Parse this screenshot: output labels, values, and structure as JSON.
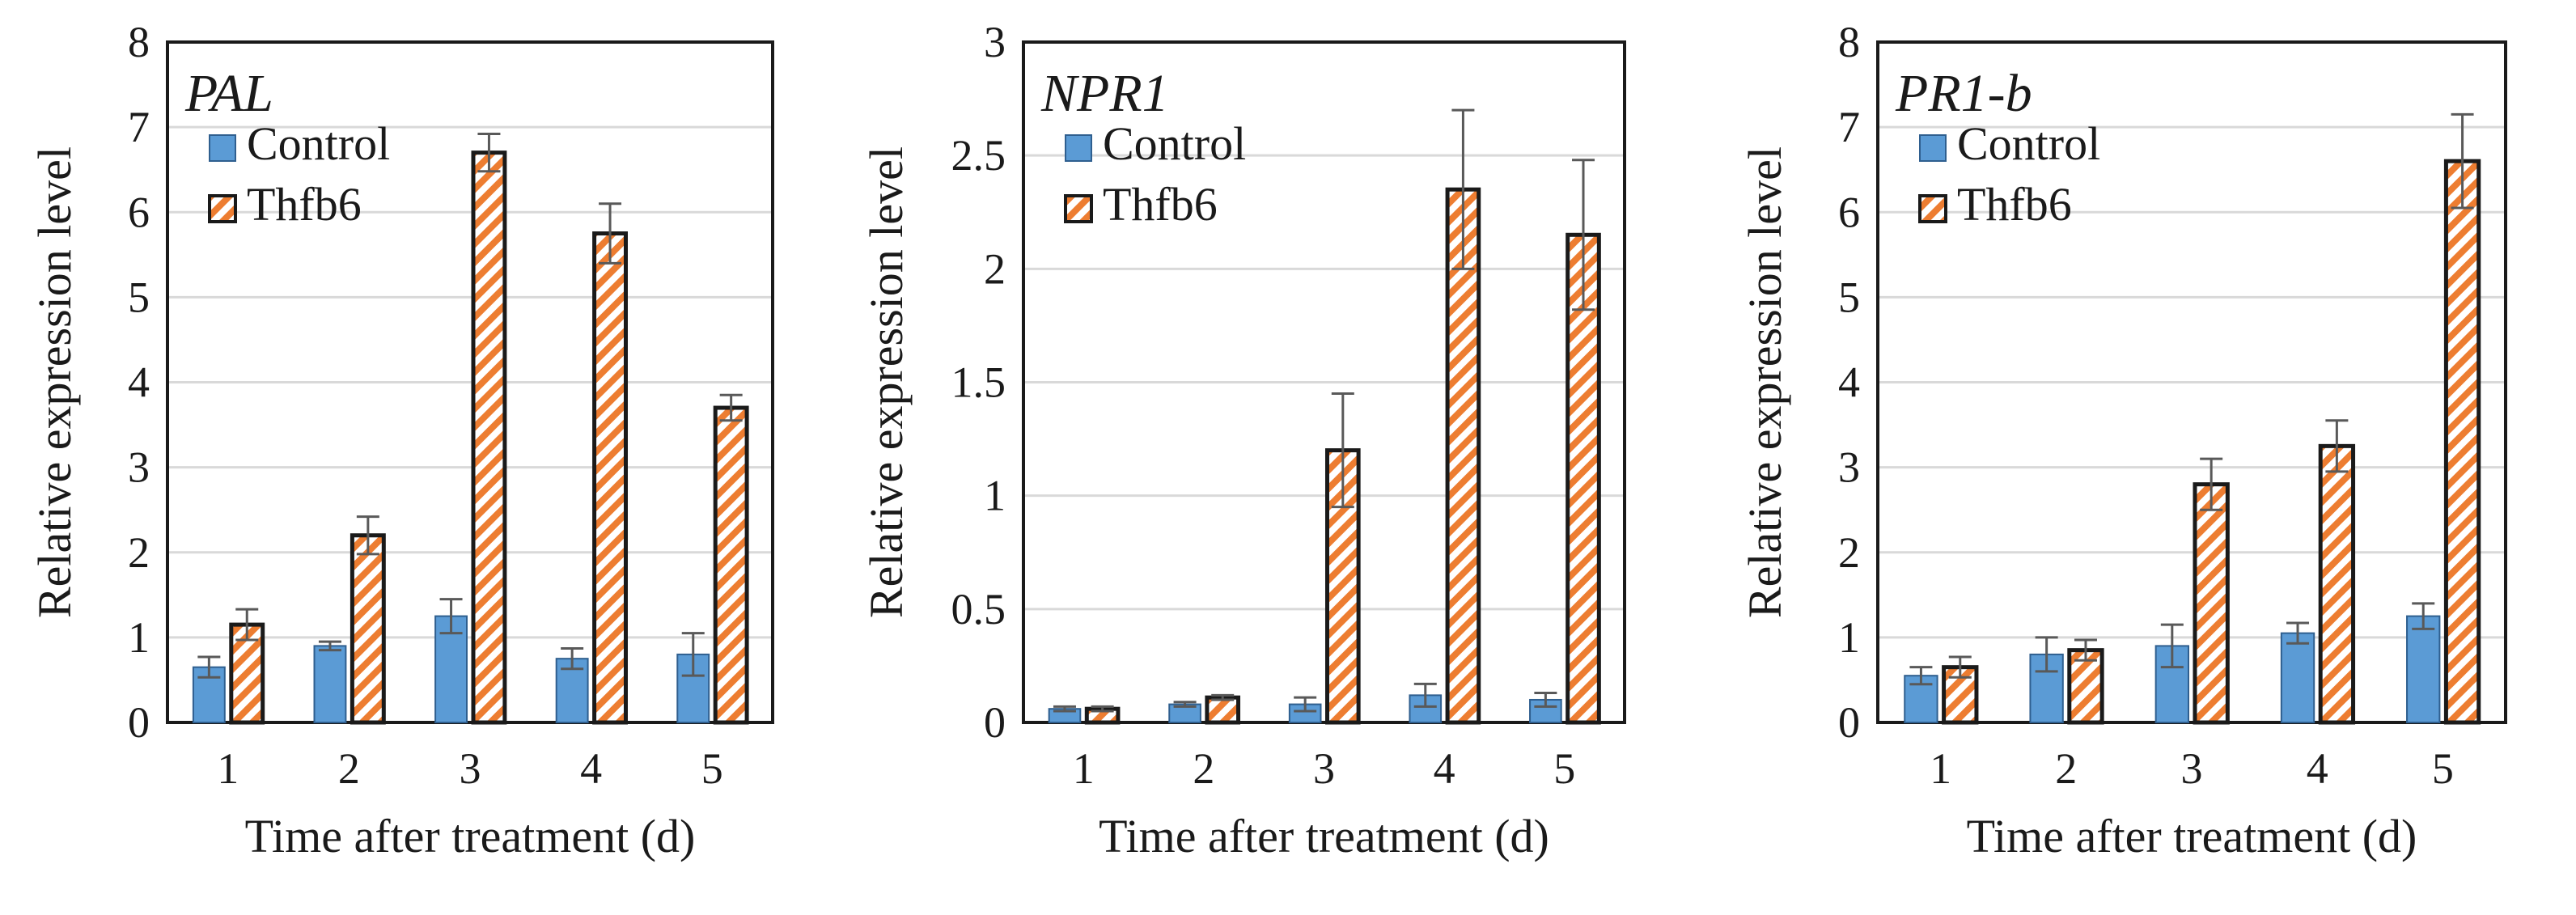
{
  "colors": {
    "control_fill": "#5b9bd5",
    "control_edge": "#2f5f8f",
    "thfb6_stripe": "#ed7d31",
    "thfb6_edge": "#1a1a1a",
    "gridline": "#d9d9d9",
    "error_bar": "#595959"
  },
  "chart_data": [
    {
      "type": "bar",
      "title": "PAL",
      "xlabel": "Time after treatment (d)",
      "ylabel": "Relative expression level",
      "categories": [
        "1",
        "2",
        "3",
        "4",
        "5"
      ],
      "ylim": [
        0,
        8
      ],
      "yticks": [
        0,
        1,
        2,
        3,
        4,
        5,
        6,
        7,
        8
      ],
      "ytick_labels": [
        "0",
        "1",
        "2",
        "3",
        "4",
        "5",
        "6",
        "7",
        "8"
      ],
      "grid": true,
      "legend_position": "top-left",
      "series": [
        {
          "name": "Control",
          "values": [
            0.65,
            0.9,
            1.25,
            0.75,
            0.8
          ],
          "errors": [
            0.12,
            0.05,
            0.2,
            0.12,
            0.25
          ]
        },
        {
          "name": "Thfb6",
          "values": [
            1.15,
            2.2,
            6.7,
            5.75,
            3.7
          ],
          "errors": [
            0.18,
            0.22,
            0.22,
            0.35,
            0.15
          ]
        }
      ]
    },
    {
      "type": "bar",
      "title": "NPR1",
      "xlabel": "Time after treatment (d)",
      "ylabel": "Relative expression level",
      "categories": [
        "1",
        "2",
        "3",
        "4",
        "5"
      ],
      "ylim": [
        0,
        3
      ],
      "yticks": [
        0,
        0.5,
        1,
        1.5,
        2,
        2.5,
        3
      ],
      "ytick_labels": [
        "0",
        "0.5",
        "1",
        "1.5",
        "2",
        "2.5",
        "3"
      ],
      "grid": true,
      "legend_position": "top-left",
      "series": [
        {
          "name": "Control",
          "values": [
            0.06,
            0.08,
            0.08,
            0.12,
            0.1
          ],
          "errors": [
            0.01,
            0.01,
            0.03,
            0.05,
            0.03
          ]
        },
        {
          "name": "Thfb6",
          "values": [
            0.06,
            0.11,
            1.2,
            2.35,
            2.15
          ],
          "errors": [
            0.01,
            0.01,
            0.25,
            0.35,
            0.33
          ]
        }
      ]
    },
    {
      "type": "bar",
      "title": "PR1-b",
      "xlabel": "Time after treatment (d)",
      "ylabel": "Relative expression level",
      "categories": [
        "1",
        "2",
        "3",
        "4",
        "5"
      ],
      "ylim": [
        0,
        8
      ],
      "yticks": [
        0,
        1,
        2,
        3,
        4,
        5,
        6,
        7,
        8
      ],
      "ytick_labels": [
        "0",
        "1",
        "2",
        "3",
        "4",
        "5",
        "6",
        "7",
        "8"
      ],
      "grid": true,
      "legend_position": "top-left",
      "series": [
        {
          "name": "Control",
          "values": [
            0.55,
            0.8,
            0.9,
            1.05,
            1.25
          ],
          "errors": [
            0.1,
            0.2,
            0.25,
            0.12,
            0.15
          ]
        },
        {
          "name": "Thfb6",
          "values": [
            0.65,
            0.85,
            2.8,
            3.25,
            6.6
          ],
          "errors": [
            0.12,
            0.12,
            0.3,
            0.3,
            0.55
          ]
        }
      ]
    }
  ]
}
